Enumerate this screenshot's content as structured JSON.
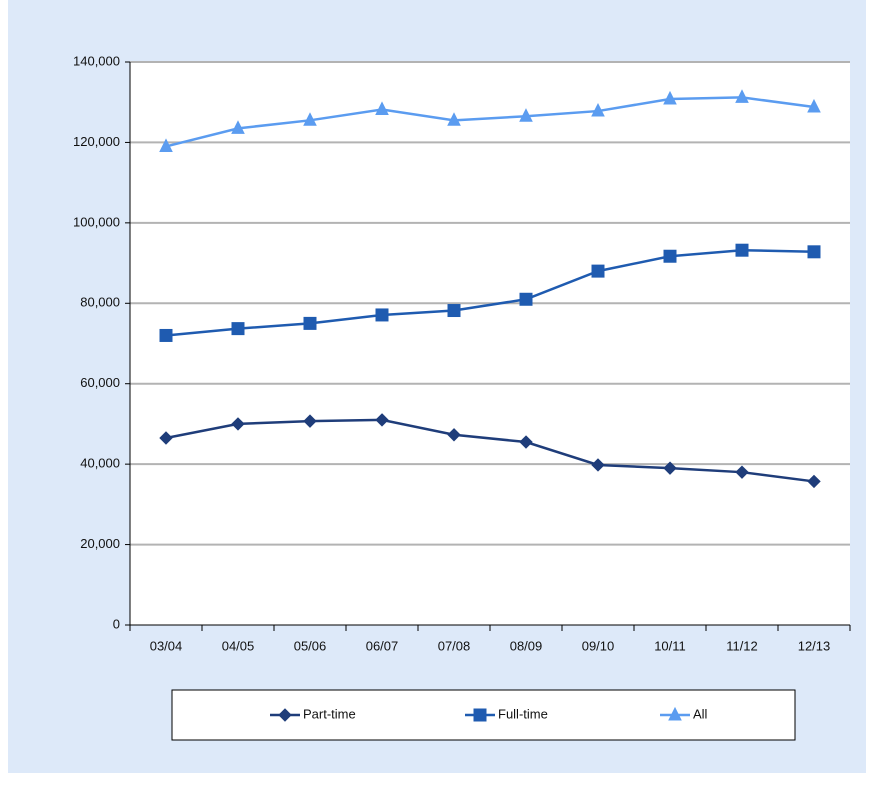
{
  "chart_data": {
    "type": "line",
    "categories": [
      "03/04",
      "04/05",
      "05/06",
      "06/07",
      "07/08",
      "08/09",
      "09/10",
      "10/11",
      "11/12",
      "12/13"
    ],
    "series": [
      {
        "name": "Part-time",
        "color": "#1f3d7a",
        "marker": "diamond",
        "values": [
          46500,
          50000,
          50700,
          51000,
          47300,
          45500,
          39800,
          39000,
          38000,
          35700
        ]
      },
      {
        "name": "Full-time",
        "color": "#1f5bb0",
        "marker": "square",
        "values": [
          72000,
          73700,
          75000,
          77100,
          78200,
          81000,
          88000,
          91700,
          93200,
          92800
        ]
      },
      {
        "name": "All",
        "color": "#5b9cf0",
        "marker": "triangle",
        "values": [
          119000,
          123500,
          125500,
          128200,
          125500,
          126500,
          127800,
          130800,
          131200,
          128800
        ]
      }
    ],
    "ylim": [
      0,
      140000
    ],
    "yticks": [
      0,
      {
        "value": 20000,
        "label": "20,000"
      },
      {
        "value": 40000,
        "label": "40,000"
      },
      {
        "value": 60000,
        "label": "60,000"
      },
      {
        "value": 80000,
        "label": "80,000"
      },
      {
        "value": 100000,
        "label": "100,000"
      },
      {
        "value": 120000,
        "label": "120,000"
      },
      {
        "value": 140000,
        "label": "140,000"
      }
    ],
    "grid": true
  }
}
